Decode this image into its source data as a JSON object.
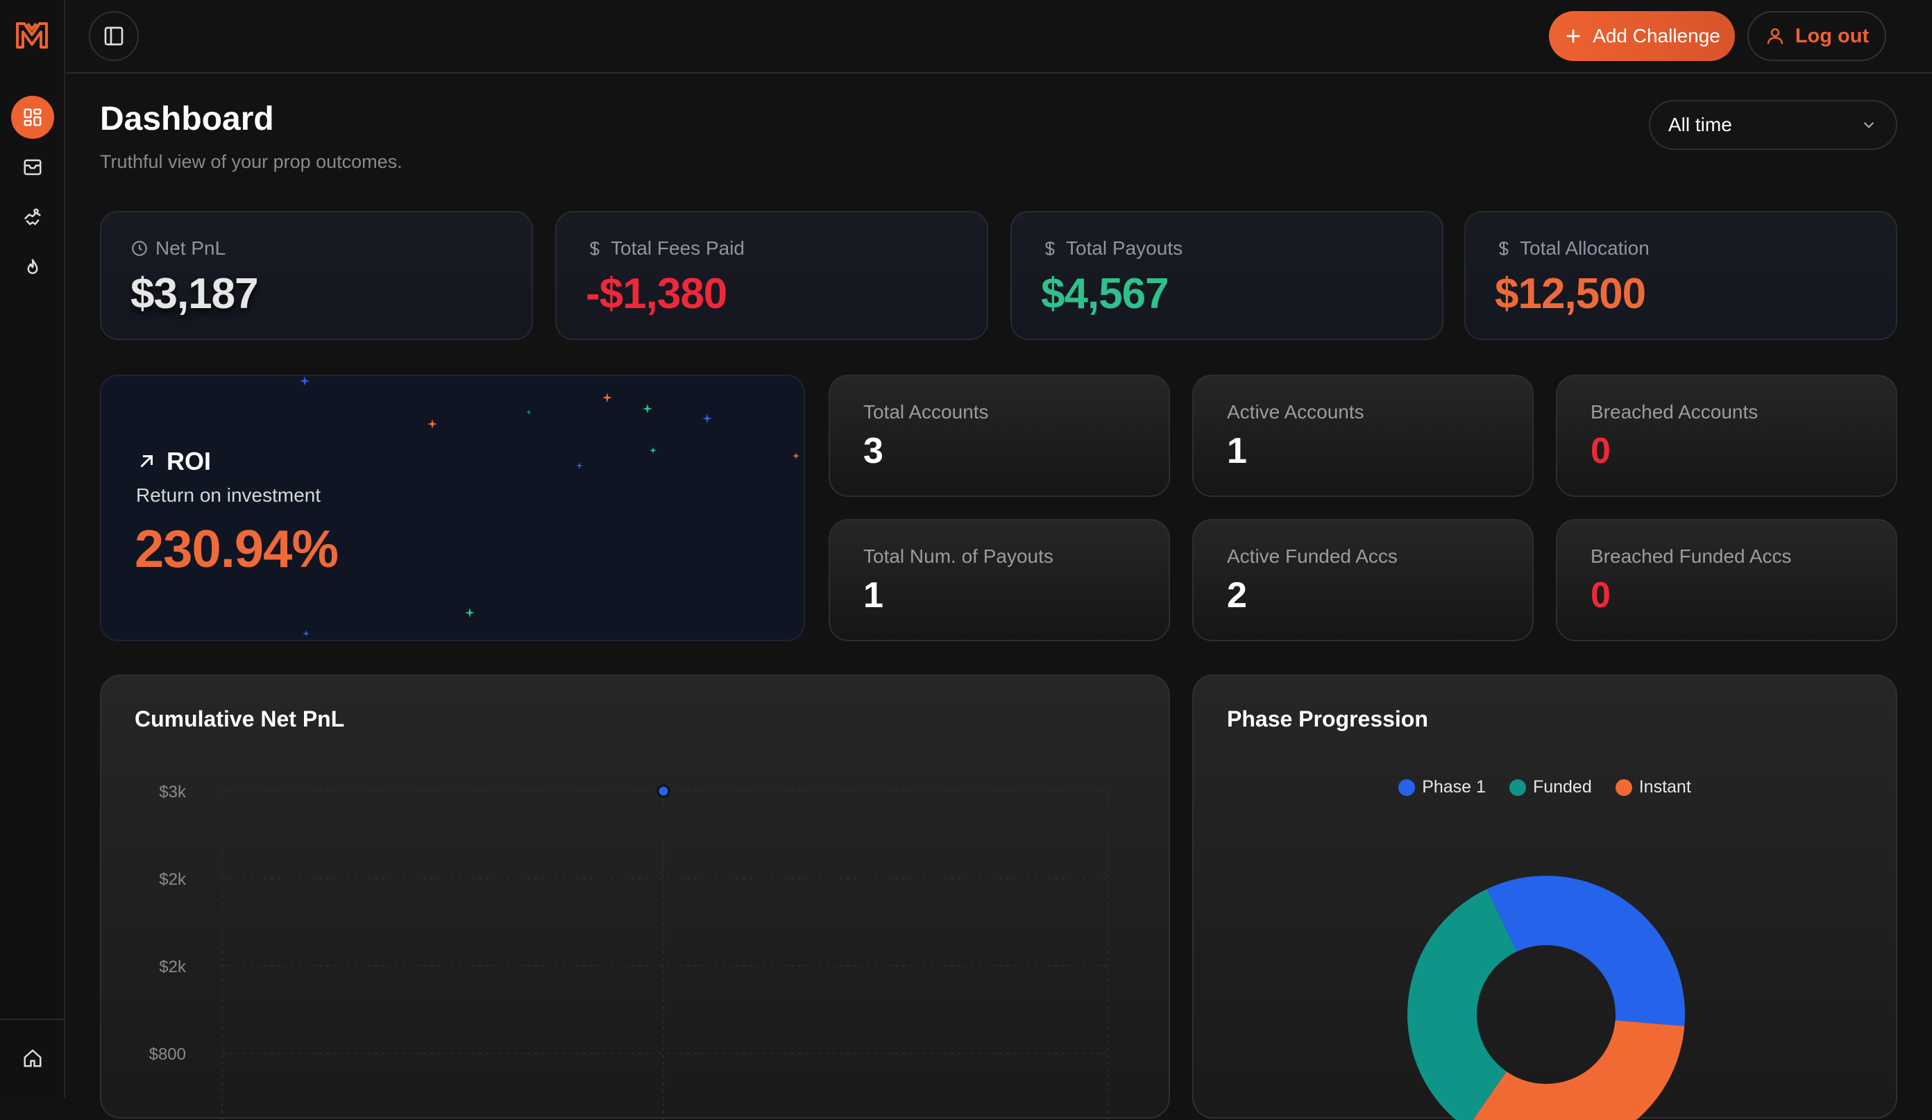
{
  "nav": {
    "items": [
      {
        "icon": "dashboard-grid-icon",
        "active": true
      },
      {
        "icon": "inbox-icon",
        "active": false
      },
      {
        "icon": "handshake-icon",
        "active": false
      },
      {
        "icon": "flame-icon",
        "active": false
      }
    ],
    "bottom_icon": "home-icon"
  },
  "topbar": {
    "add_label": "Add Challenge",
    "logout_label": "Log out"
  },
  "header": {
    "title": "Dashboard",
    "subtitle": "Truthful view of your prop outcomes.",
    "range": "All time"
  },
  "stats": [
    {
      "label": "Net PnL",
      "value": "$3,187",
      "icon": "clock-icon",
      "color": "#e6e6e6"
    },
    {
      "label": "Total Fees Paid",
      "value": "-$1,380",
      "icon": "dollar-icon",
      "color": "#f0283a"
    },
    {
      "label": "Total Payouts",
      "value": "$4,567",
      "icon": "dollar-icon",
      "color": "#2fc18c"
    },
    {
      "label": "Total Allocation",
      "value": "$12,500",
      "icon": "dollar-icon",
      "color": "#ef6a38"
    }
  ],
  "roi": {
    "title": "ROI",
    "subtitle": "Return on investment",
    "value": "230.94%"
  },
  "accounts": [
    {
      "label": "Total Accounts",
      "value": "3",
      "color": "#ffffff"
    },
    {
      "label": "Active Accounts",
      "value": "1",
      "color": "#ffffff"
    },
    {
      "label": "Breached Accounts",
      "value": "0",
      "color": "#f0283a"
    },
    {
      "label": "Total Num. of Payouts",
      "value": "1",
      "color": "#ffffff"
    },
    {
      "label": "Active Funded Accs",
      "value": "2",
      "color": "#ffffff"
    },
    {
      "label": "Breached Funded Accs",
      "value": "0",
      "color": "#f0283a"
    }
  ],
  "colors": {
    "accent": "#ee6231",
    "phase1": "#2563eb",
    "funded": "#0f9488",
    "instant": "#f26a33"
  },
  "cumulative_title": "Cumulative Net PnL",
  "phase_title": "Phase Progression",
  "chart_data": [
    {
      "type": "line",
      "title": "Cumulative Net PnL",
      "y_ticks": [
        "$3k",
        "$2k",
        "$2k",
        "$800"
      ],
      "points": [
        {
          "x": 2,
          "y": 3187
        }
      ]
    },
    {
      "type": "pie",
      "title": "Phase Progression",
      "legend": [
        "Phase 1",
        "Funded",
        "Instant"
      ],
      "values": [
        1,
        1,
        1
      ]
    }
  ]
}
